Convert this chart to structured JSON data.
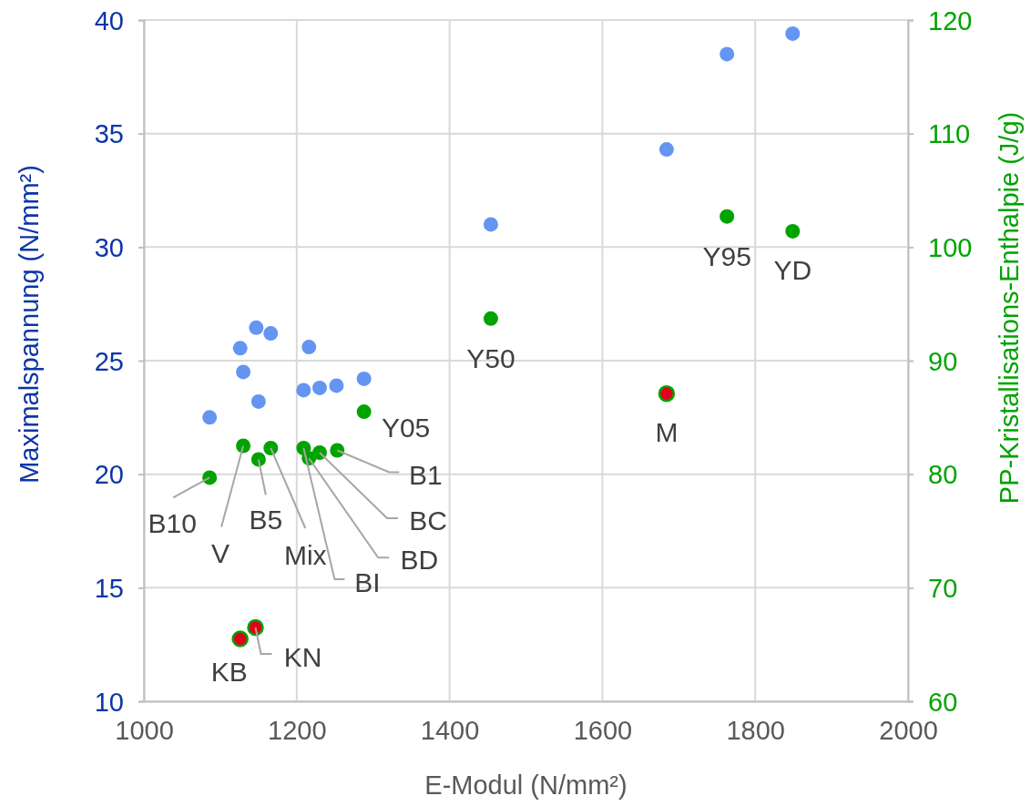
{
  "chart_data": {
    "type": "scatter",
    "xlabel": "E-Modul (N/mm²)",
    "ylabel": "Maximalspannung (N/mm²)",
    "y2label": "PP-Kristallisations-Enthalpie (J/g)",
    "xlim": [
      1000,
      2000
    ],
    "xticks": [
      1000,
      1200,
      1400,
      1600,
      1800,
      2000
    ],
    "ylim": [
      10,
      40
    ],
    "yticks": [
      10,
      15,
      20,
      25,
      30,
      35,
      40
    ],
    "y2lim": [
      60,
      120
    ],
    "y2ticks": [
      60,
      70,
      80,
      90,
      100,
      110,
      120
    ],
    "grid": true,
    "marker": "circle",
    "series": [
      {
        "color": "#6495f0",
        "axis": "y",
        "x": [
          1147,
          1166,
          1126,
          1216,
          1130,
          1209,
          1230,
          1252,
          1288,
          1150,
          1086,
          1454,
          1684,
          1763,
          1849
        ],
        "values": [
          26.45,
          26.2,
          25.55,
          25.6,
          24.5,
          23.7,
          23.8,
          23.9,
          24.2,
          23.2,
          22.5,
          31.0,
          34.3,
          38.5,
          39.4
        ]
      },
      {
        "color": "#00a300",
        "axis": "y2",
        "x": [
          1086,
          1130,
          1150,
          1166,
          1209,
          1216,
          1230,
          1253,
          1288,
          1454,
          1763,
          1849
        ],
        "values": [
          79.7,
          82.5,
          81.3,
          82.3,
          82.3,
          81.4,
          81.9,
          82.1,
          85.5,
          93.7,
          102.7,
          101.4
        ],
        "value_labels": [
          "B10",
          "V",
          "B5",
          "Mix",
          "BI",
          "BD",
          "BC",
          "B1",
          "Y05",
          "Y50",
          "Y95",
          "YD"
        ]
      },
      {
        "color": "#e3001b",
        "axis": "y2",
        "x": [
          1126,
          1146,
          1684
        ],
        "values": [
          65.5,
          66.5,
          87.1
        ],
        "value_labels": [
          "KB",
          "KN",
          "M"
        ]
      }
    ]
  }
}
